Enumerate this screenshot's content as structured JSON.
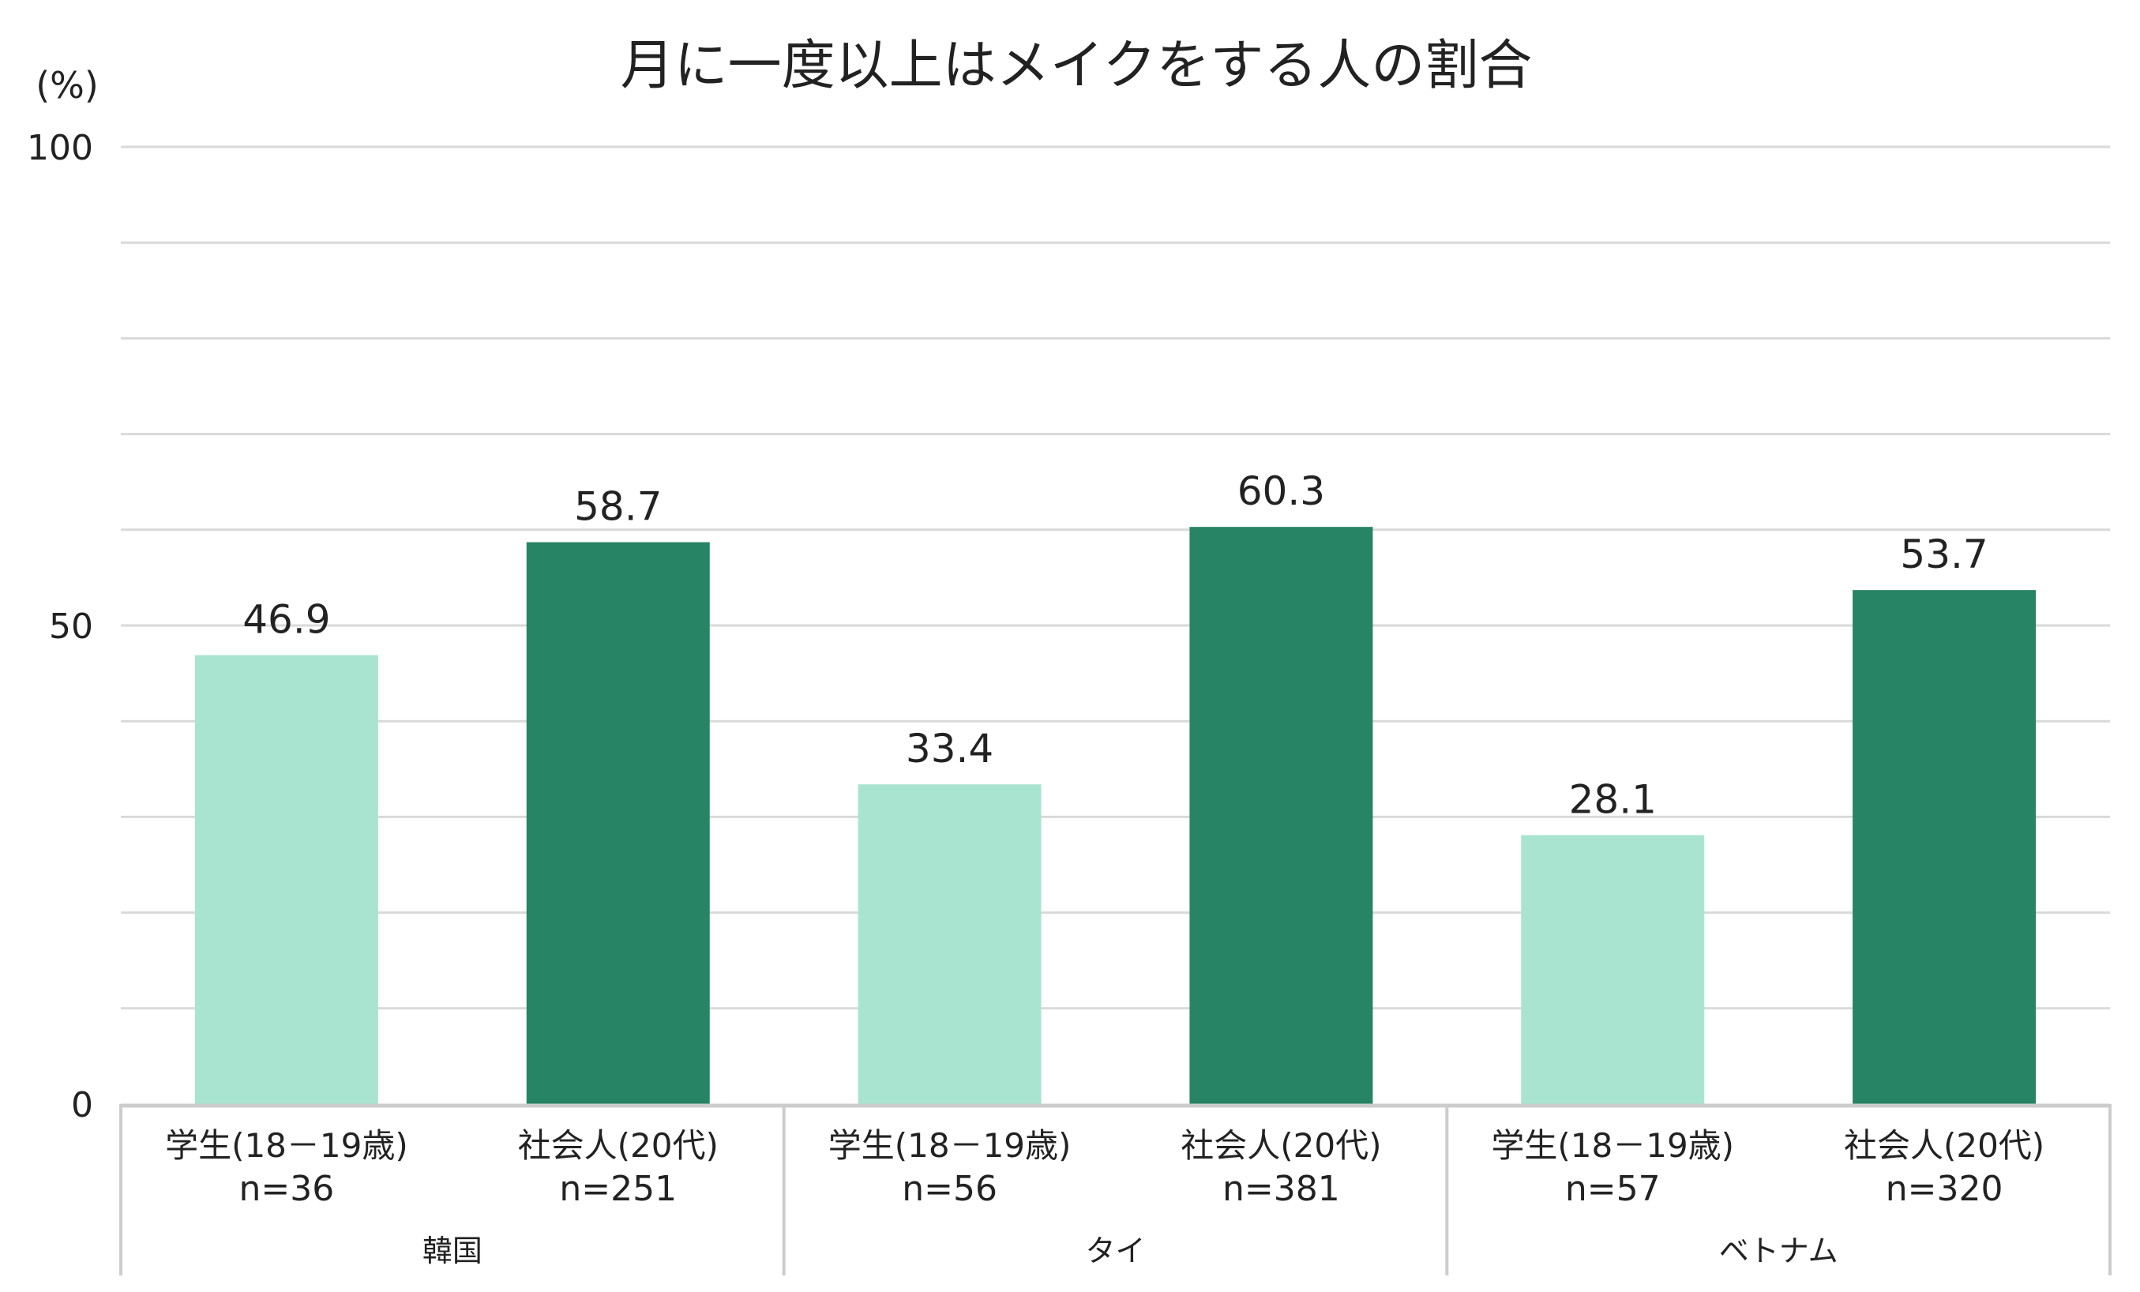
{
  "chart_data": {
    "type": "bar",
    "title": "月に一度以上はメイクをする人の割合",
    "ylabel": "(%)",
    "ylim": [
      0,
      100
    ],
    "yticks": [
      0,
      50,
      100
    ],
    "minor_gridlines_every": 10,
    "grid": true,
    "groups": [
      {
        "label": "韓国",
        "bars": [
          {
            "label": "学生(18－19歳)",
            "n": "n=36",
            "value": 46.9,
            "value_label": "46.9"
          },
          {
            "label": "社会人(20代)",
            "n": "n=251",
            "value": 58.7,
            "value_label": "58.7"
          }
        ]
      },
      {
        "label": "タイ",
        "bars": [
          {
            "label": "学生(18－19歳)",
            "n": "n=56",
            "value": 33.4,
            "value_label": "33.4"
          },
          {
            "label": "社会人(20代)",
            "n": "n=381",
            "value": 60.3,
            "value_label": "60.3"
          }
        ]
      },
      {
        "label": "ベトナム",
        "bars": [
          {
            "label": "学生(18－19歳)",
            "n": "n=57",
            "value": 28.1,
            "value_label": "28.1"
          },
          {
            "label": "社会人(20代)",
            "n": "n=320",
            "value": 53.7,
            "value_label": "53.7"
          }
        ]
      }
    ],
    "colors": {
      "student": "#a9e4d1",
      "worker": "#278465",
      "grid": "#d9d9d9",
      "axis": "#cccccc"
    }
  }
}
